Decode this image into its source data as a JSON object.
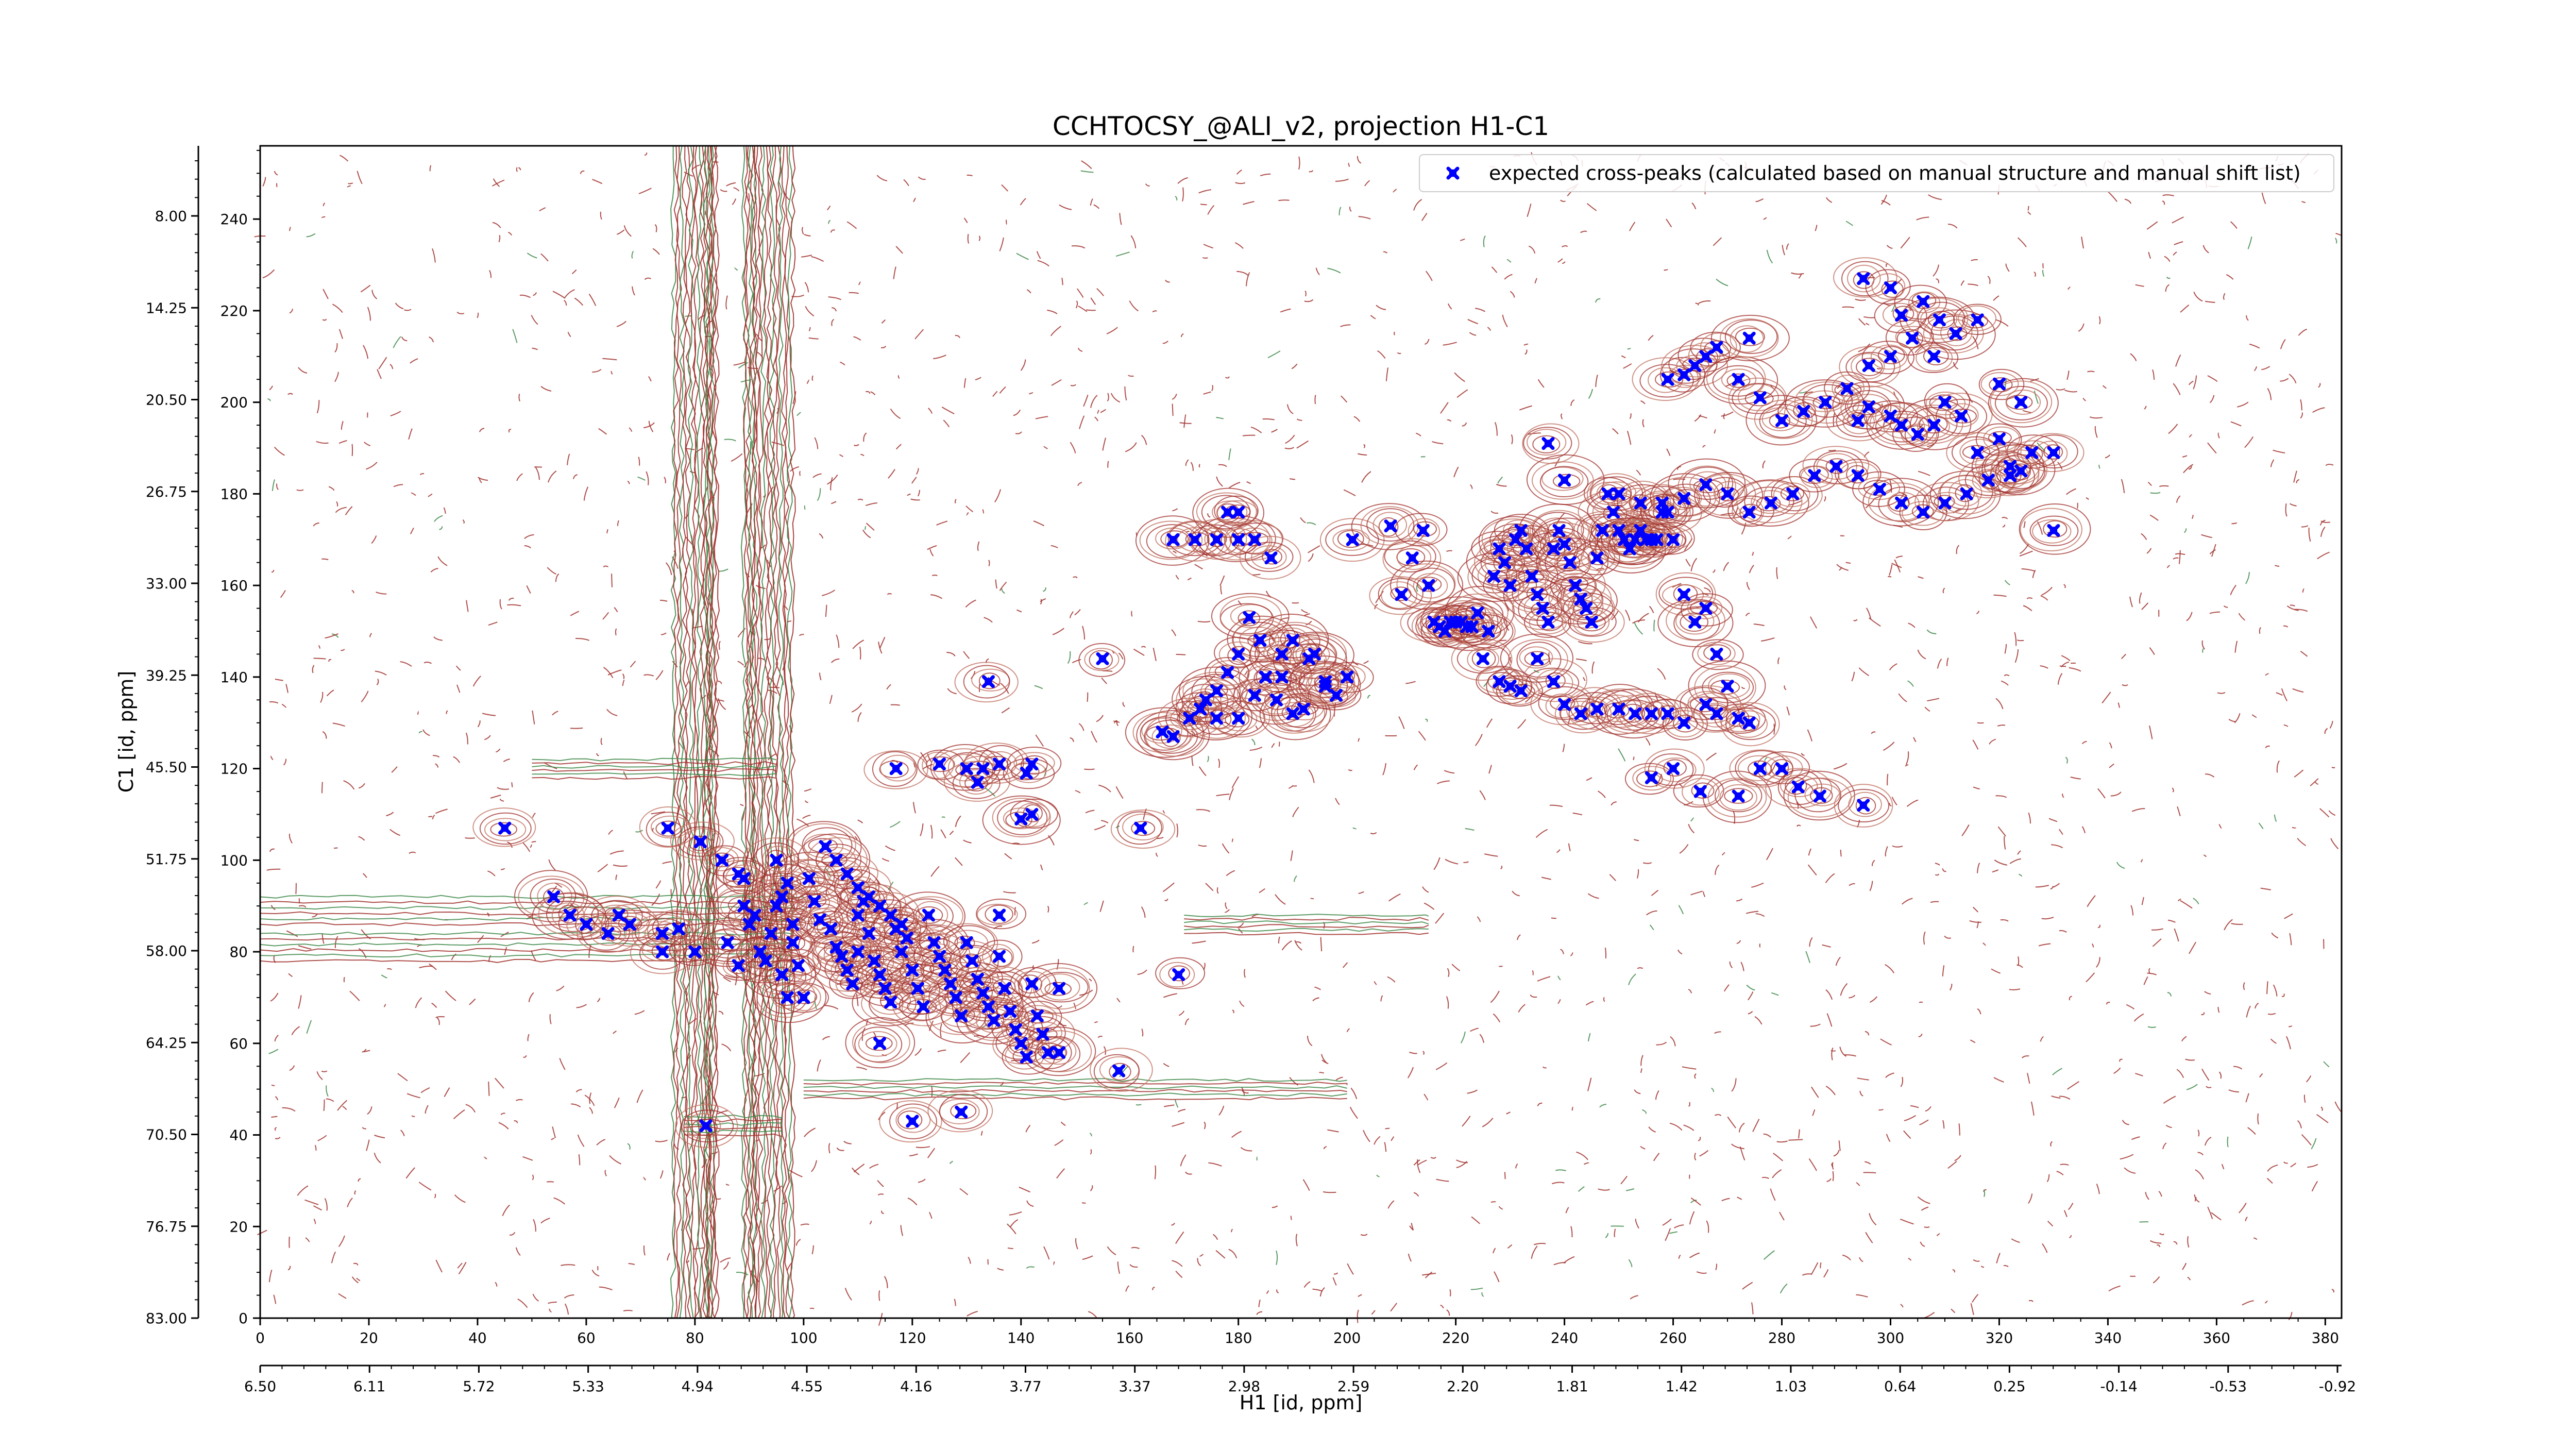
{
  "chart_data": {
    "type": "scatter",
    "title": "CCHTOCSY_@ALI_v2, projection H1-C1",
    "xlabel": "H1 [id, ppm]",
    "ylabel": "C1 [id, ppm]",
    "x_index_range": [
      0,
      383
    ],
    "y_index_range": [
      0,
      256
    ],
    "x_index_ticks": [
      "0",
      "20",
      "40",
      "60",
      "80",
      "100",
      "120",
      "140",
      "160",
      "180",
      "200",
      "220",
      "240",
      "260",
      "280",
      "300",
      "320",
      "340",
      "360",
      "380"
    ],
    "x_ppm_ticks": [
      "6.50",
      "6.11",
      "5.72",
      "5.33",
      "4.94",
      "4.55",
      "4.16",
      "3.77",
      "3.37",
      "2.98",
      "2.59",
      "2.20",
      "1.81",
      "1.42",
      "1.03",
      "0.64",
      "0.25",
      "-0.14",
      "-0.53",
      "-0.92"
    ],
    "y_index_ticks": [
      "0",
      "20",
      "40",
      "60",
      "80",
      "100",
      "120",
      "140",
      "160",
      "180",
      "200",
      "220",
      "240"
    ],
    "y_ppm_ticks": [
      "83.00",
      "76.75",
      "70.50",
      "64.25",
      "58.00",
      "51.75",
      "45.50",
      "39.25",
      "33.00",
      "26.75",
      "20.50",
      "14.25",
      "8.00"
    ],
    "grid": false,
    "legend_position": "top-right",
    "series": [
      {
        "name": "expected cross-peaks (calculated based on manual structure and manual shift list)",
        "color": "#0000ff",
        "marker": "x",
        "points": [
          [
            45,
            107
          ],
          [
            54,
            92
          ],
          [
            57,
            88
          ],
          [
            60,
            86
          ],
          [
            64,
            84
          ],
          [
            66,
            88
          ],
          [
            68,
            86
          ],
          [
            74,
            84
          ],
          [
            74,
            80
          ],
          [
            75,
            107
          ],
          [
            77,
            85
          ],
          [
            81,
            104
          ],
          [
            85,
            100
          ],
          [
            88,
            97
          ],
          [
            89,
            96
          ],
          [
            82,
            42
          ],
          [
            89,
            90
          ],
          [
            90,
            86
          ],
          [
            92,
            80
          ],
          [
            94,
            84
          ],
          [
            95,
            90
          ],
          [
            96,
            92
          ],
          [
            98,
            86
          ],
          [
            98,
            82
          ],
          [
            99,
            77
          ],
          [
            100,
            70
          ],
          [
            101,
            96
          ],
          [
            102,
            91
          ],
          [
            103,
            87
          ],
          [
            105,
            85
          ],
          [
            106,
            81
          ],
          [
            107,
            79
          ],
          [
            108,
            76
          ],
          [
            109,
            73
          ],
          [
            110,
            80
          ],
          [
            110,
            88
          ],
          [
            111,
            91
          ],
          [
            112,
            84
          ],
          [
            113,
            78
          ],
          [
            114,
            75
          ],
          [
            115,
            72
          ],
          [
            116,
            69
          ],
          [
            117,
            85
          ],
          [
            118,
            80
          ],
          [
            119,
            83
          ],
          [
            120,
            76
          ],
          [
            121,
            72
          ],
          [
            122,
            68
          ],
          [
            123,
            88
          ],
          [
            124,
            82
          ],
          [
            125,
            79
          ],
          [
            126,
            76
          ],
          [
            127,
            73
          ],
          [
            128,
            70
          ],
          [
            129,
            66
          ],
          [
            130,
            82
          ],
          [
            131,
            78
          ],
          [
            132,
            74
          ],
          [
            133,
            71
          ],
          [
            134,
            68
          ],
          [
            135,
            65
          ],
          [
            136,
            79
          ],
          [
            137,
            72
          ],
          [
            138,
            67
          ],
          [
            139,
            63
          ],
          [
            140,
            60
          ],
          [
            141,
            57
          ],
          [
            142,
            73
          ],
          [
            143,
            66
          ],
          [
            144,
            62
          ],
          [
            145,
            58
          ],
          [
            147,
            72
          ],
          [
            147,
            58
          ],
          [
            104,
            103
          ],
          [
            106,
            100
          ],
          [
            108,
            97
          ],
          [
            110,
            94
          ],
          [
            112,
            92
          ],
          [
            114,
            90
          ],
          [
            116,
            88
          ],
          [
            118,
            86
          ],
          [
            95,
            100
          ],
          [
            97,
            95
          ],
          [
            80,
            80
          ],
          [
            86,
            82
          ],
          [
            88,
            77
          ],
          [
            91,
            88
          ],
          [
            93,
            78
          ],
          [
            96,
            75
          ],
          [
            97,
            70
          ],
          [
            114,
            60
          ],
          [
            120,
            43
          ],
          [
            129,
            45
          ],
          [
            158,
            54
          ],
          [
            169,
            75
          ],
          [
            117,
            120
          ],
          [
            125,
            121
          ],
          [
            130,
            120
          ],
          [
            133,
            120
          ],
          [
            136,
            121
          ],
          [
            141,
            119
          ],
          [
            142,
            121
          ],
          [
            132,
            117
          ],
          [
            140,
            109
          ],
          [
            142,
            110
          ],
          [
            134,
            139
          ],
          [
            136,
            88
          ],
          [
            155,
            144
          ],
          [
            162,
            107
          ],
          [
            166,
            128
          ],
          [
            168,
            127
          ],
          [
            168,
            170
          ],
          [
            172,
            170
          ],
          [
            176,
            170
          ],
          [
            180,
            170
          ],
          [
            183,
            170
          ],
          [
            174,
            135
          ],
          [
            176,
            137
          ],
          [
            180,
            131
          ],
          [
            182,
            153
          ],
          [
            184,
            148
          ],
          [
            187,
            135
          ],
          [
            188,
            140
          ],
          [
            190,
            132
          ],
          [
            192,
            133
          ],
          [
            194,
            145
          ],
          [
            196,
            139
          ],
          [
            198,
            136
          ],
          [
            200,
            140
          ],
          [
            178,
            176
          ],
          [
            180,
            176
          ],
          [
            186,
            166
          ],
          [
            171,
            131
          ],
          [
            173,
            133
          ],
          [
            176,
            131
          ],
          [
            178,
            141
          ],
          [
            180,
            145
          ],
          [
            183,
            136
          ],
          [
            185,
            140
          ],
          [
            188,
            145
          ],
          [
            190,
            148
          ],
          [
            193,
            144
          ],
          [
            196,
            138
          ],
          [
            201,
            170
          ],
          [
            208,
            173
          ],
          [
            210,
            158
          ],
          [
            212,
            166
          ],
          [
            214,
            172
          ],
          [
            215,
            160
          ],
          [
            216,
            152
          ],
          [
            217,
            151
          ],
          [
            218,
            150
          ],
          [
            219,
            152
          ],
          [
            220,
            152
          ],
          [
            221,
            152
          ],
          [
            222,
            151
          ],
          [
            223,
            151
          ],
          [
            224,
            154
          ],
          [
            225,
            144
          ],
          [
            226,
            150
          ],
          [
            227,
            162
          ],
          [
            228,
            168
          ],
          [
            229,
            165
          ],
          [
            230,
            160
          ],
          [
            231,
            170
          ],
          [
            232,
            172
          ],
          [
            233,
            168
          ],
          [
            234,
            162
          ],
          [
            235,
            158
          ],
          [
            236,
            155
          ],
          [
            237,
            152
          ],
          [
            238,
            168
          ],
          [
            239,
            172
          ],
          [
            240,
            169
          ],
          [
            241,
            165
          ],
          [
            242,
            160
          ],
          [
            243,
            157
          ],
          [
            244,
            155
          ],
          [
            245,
            152
          ],
          [
            246,
            166
          ],
          [
            247,
            172
          ],
          [
            248,
            180
          ],
          [
            249,
            176
          ],
          [
            250,
            172
          ],
          [
            251,
            170
          ],
          [
            252,
            168
          ],
          [
            253,
            170
          ],
          [
            254,
            172
          ],
          [
            255,
            170
          ],
          [
            256,
            170
          ],
          [
            257,
            170
          ],
          [
            258,
            178
          ],
          [
            259,
            176
          ],
          [
            260,
            170
          ],
          [
            262,
            158
          ],
          [
            264,
            152
          ],
          [
            266,
            155
          ],
          [
            268,
            145
          ],
          [
            270,
            138
          ],
          [
            228,
            139
          ],
          [
            230,
            138
          ],
          [
            232,
            137
          ],
          [
            235,
            144
          ],
          [
            238,
            139
          ],
          [
            240,
            134
          ],
          [
            243,
            132
          ],
          [
            246,
            133
          ],
          [
            250,
            133
          ],
          [
            253,
            132
          ],
          [
            256,
            132
          ],
          [
            259,
            132
          ],
          [
            262,
            130
          ],
          [
            266,
            134
          ],
          [
            268,
            132
          ],
          [
            272,
            131
          ],
          [
            274,
            130
          ],
          [
            256,
            118
          ],
          [
            260,
            120
          ],
          [
            265,
            115
          ],
          [
            272,
            114
          ],
          [
            276,
            120
          ],
          [
            280,
            120
          ],
          [
            283,
            116
          ],
          [
            287,
            114
          ],
          [
            295,
            112
          ],
          [
            237,
            191
          ],
          [
            240,
            183
          ],
          [
            250,
            180
          ],
          [
            254,
            178
          ],
          [
            258,
            176
          ],
          [
            262,
            179
          ],
          [
            266,
            182
          ],
          [
            270,
            180
          ],
          [
            274,
            176
          ],
          [
            278,
            178
          ],
          [
            282,
            180
          ],
          [
            286,
            184
          ],
          [
            290,
            186
          ],
          [
            294,
            184
          ],
          [
            298,
            181
          ],
          [
            302,
            178
          ],
          [
            306,
            176
          ],
          [
            310,
            178
          ],
          [
            314,
            180
          ],
          [
            318,
            183
          ],
          [
            322,
            186
          ],
          [
            326,
            189
          ],
          [
            330,
            189
          ],
          [
            294,
            196
          ],
          [
            296,
            199
          ],
          [
            300,
            197
          ],
          [
            302,
            195
          ],
          [
            305,
            193
          ],
          [
            308,
            195
          ],
          [
            310,
            200
          ],
          [
            313,
            197
          ],
          [
            316,
            189
          ],
          [
            320,
            192
          ],
          [
            322,
            184
          ],
          [
            324,
            185
          ],
          [
            259,
            205
          ],
          [
            262,
            206
          ],
          [
            264,
            208
          ],
          [
            266,
            210
          ],
          [
            268,
            212
          ],
          [
            272,
            205
          ],
          [
            276,
            201
          ],
          [
            280,
            196
          ],
          [
            284,
            198
          ],
          [
            288,
            200
          ],
          [
            292,
            203
          ],
          [
            296,
            208
          ],
          [
            300,
            210
          ],
          [
            304,
            214
          ],
          [
            308,
            210
          ],
          [
            312,
            215
          ],
          [
            316,
            218
          ],
          [
            320,
            204
          ],
          [
            324,
            200
          ],
          [
            330,
            172
          ],
          [
            295,
            227
          ],
          [
            300,
            225
          ],
          [
            302,
            219
          ],
          [
            306,
            222
          ],
          [
            309,
            218
          ],
          [
            274,
            214
          ]
        ]
      }
    ]
  }
}
